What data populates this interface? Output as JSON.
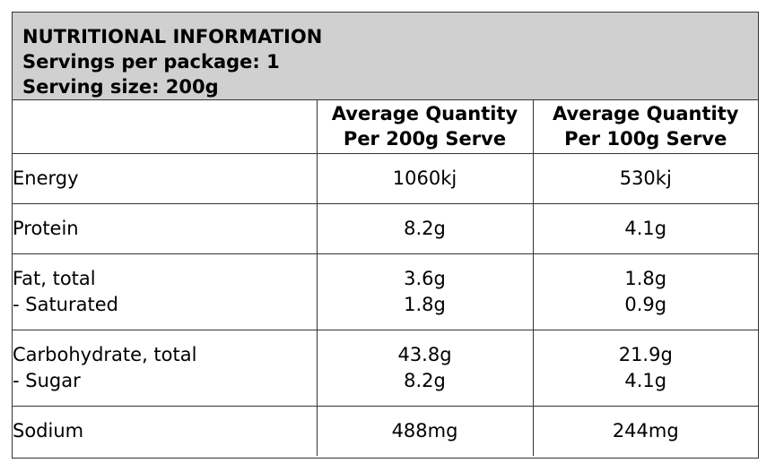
{
  "header": {
    "title": "NUTRITIONAL INFORMATION",
    "servings": "Servings per package: 1",
    "serving_size": "Serving size: 200g"
  },
  "table": {
    "col1_header": [
      "Average Quantity",
      "Per 200g Serve"
    ],
    "col2_header": [
      "Average Quantity",
      "Per 100g Serve"
    ],
    "rows": [
      {
        "name": [
          "Energy"
        ],
        "per_serve": [
          "1060kj"
        ],
        "per_100g": [
          "530kj"
        ]
      },
      {
        "name": [
          "Protein"
        ],
        "per_serve": [
          "8.2g"
        ],
        "per_100g": [
          "4.1g"
        ]
      },
      {
        "name": [
          "Fat, total",
          "- Saturated"
        ],
        "per_serve": [
          "3.6g",
          "1.8g"
        ],
        "per_100g": [
          "1.8g",
          "0.9g"
        ]
      },
      {
        "name": [
          "Carbohydrate, total",
          "- Sugar"
        ],
        "per_serve": [
          "43.8g",
          "8.2g"
        ],
        "per_100g": [
          "21.9g",
          "4.1g"
        ]
      },
      {
        "name": [
          "Sodium"
        ],
        "per_serve": [
          "488mg"
        ],
        "per_100g": [
          "244mg"
        ]
      }
    ]
  }
}
